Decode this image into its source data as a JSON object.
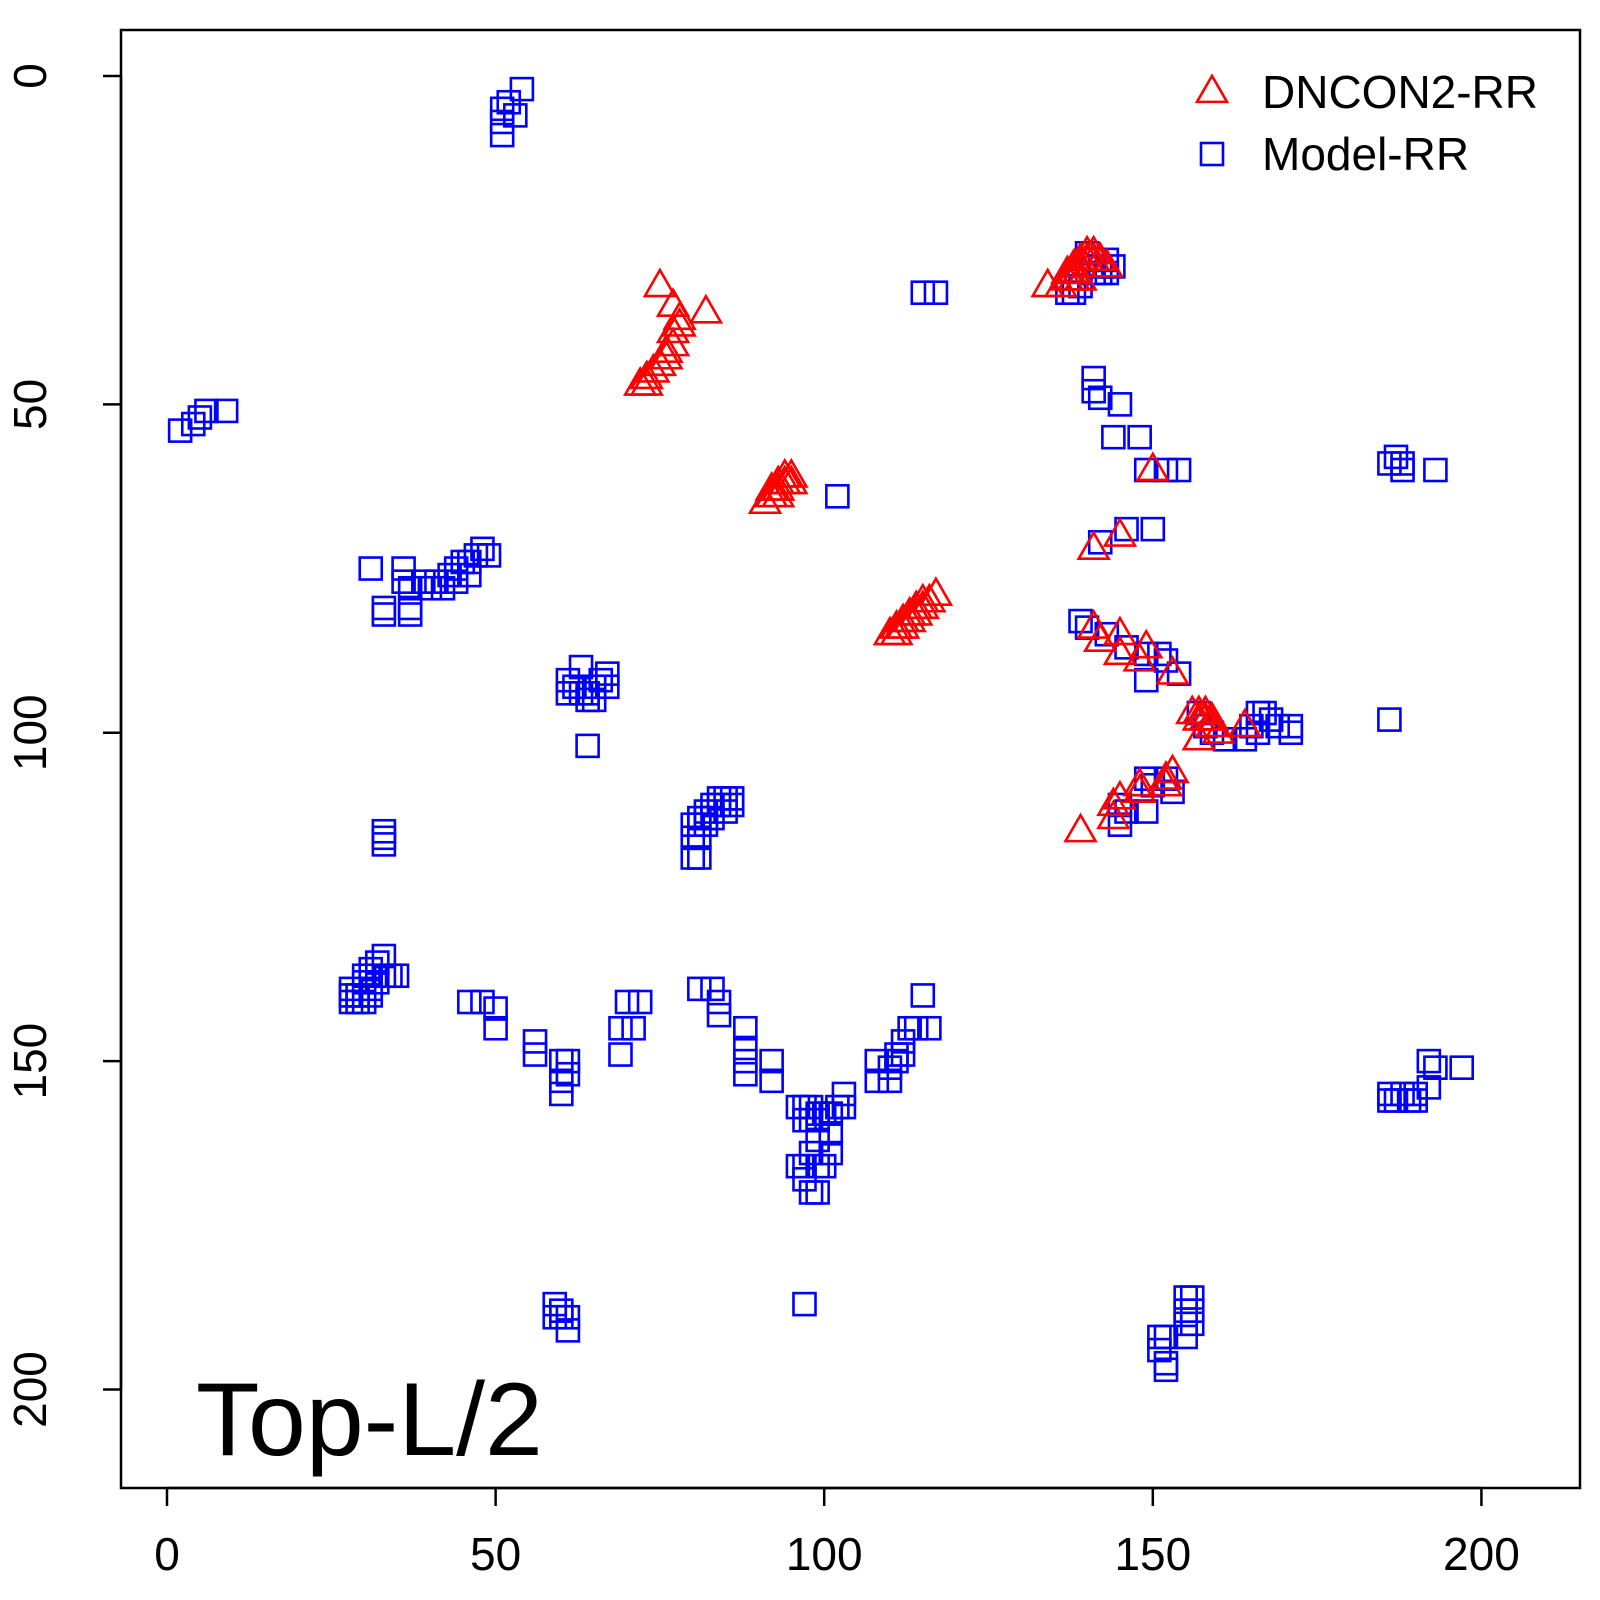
{
  "chart_data": {
    "type": "scatter",
    "title": "",
    "xlabel": "",
    "ylabel": "",
    "annotation": "Top-L/2",
    "xlim": [
      -7,
      215
    ],
    "ylim": [
      215,
      -7
    ],
    "y_reversed": true,
    "x_ticks": [
      0,
      50,
      100,
      150,
      200
    ],
    "y_ticks": [
      0,
      50,
      100,
      150,
      200
    ],
    "legend": {
      "position": "top-right"
    },
    "grid": false,
    "series": [
      {
        "name": "DNCON2-RR",
        "marker": "triangle",
        "color": "#ff0000",
        "points": [
          [
            75,
            32
          ],
          [
            77,
            35
          ],
          [
            78,
            37
          ],
          [
            78,
            38
          ],
          [
            77,
            39
          ],
          [
            77,
            41
          ],
          [
            76,
            42
          ],
          [
            76,
            43
          ],
          [
            75,
            44
          ],
          [
            74,
            45
          ],
          [
            73,
            46
          ],
          [
            73,
            47
          ],
          [
            72,
            47
          ],
          [
            82,
            36
          ],
          [
            91,
            65
          ],
          [
            92,
            64
          ],
          [
            92,
            63
          ],
          [
            93,
            63
          ],
          [
            93,
            62
          ],
          [
            94,
            62
          ],
          [
            94,
            61
          ],
          [
            95,
            61
          ],
          [
            95,
            62
          ],
          [
            93,
            64
          ],
          [
            110,
            85
          ],
          [
            111,
            85
          ],
          [
            112,
            84
          ],
          [
            112,
            83
          ],
          [
            113,
            83
          ],
          [
            113,
            82
          ],
          [
            114,
            82
          ],
          [
            114,
            81
          ],
          [
            115,
            81
          ],
          [
            115,
            80
          ],
          [
            116,
            80
          ],
          [
            117,
            79
          ],
          [
            111,
            84
          ],
          [
            134,
            32
          ],
          [
            136,
            32
          ],
          [
            137,
            31
          ],
          [
            137,
            30
          ],
          [
            138,
            30
          ],
          [
            138,
            29
          ],
          [
            139,
            29
          ],
          [
            139,
            28
          ],
          [
            140,
            28
          ],
          [
            140,
            27
          ],
          [
            141,
            27
          ],
          [
            141,
            28
          ],
          [
            142,
            28
          ],
          [
            143,
            29
          ],
          [
            138,
            31
          ],
          [
            139,
            31
          ],
          [
            141,
            72
          ],
          [
            145,
            70
          ],
          [
            150,
            60
          ],
          [
            141,
            84
          ],
          [
            142,
            86
          ],
          [
            145,
            85
          ],
          [
            145,
            88
          ],
          [
            149,
            87
          ],
          [
            148,
            89
          ],
          [
            153,
            91
          ],
          [
            156,
            97
          ],
          [
            157,
            97
          ],
          [
            157,
            98
          ],
          [
            158,
            98
          ],
          [
            158,
            97
          ],
          [
            159,
            98
          ],
          [
            159,
            99
          ],
          [
            160,
            100
          ],
          [
            164,
            99
          ],
          [
            157,
            101
          ],
          [
            139,
            115
          ],
          [
            144,
            113
          ],
          [
            144,
            111
          ],
          [
            145,
            110
          ],
          [
            148,
            109
          ],
          [
            148,
            108
          ],
          [
            152,
            108
          ],
          [
            152,
            107
          ],
          [
            153,
            106
          ]
        ]
      },
      {
        "name": "Model-RR",
        "marker": "square",
        "color": "#0000ff",
        "points": [
          [
            54,
            2
          ],
          [
            52,
            4
          ],
          [
            51,
            5
          ],
          [
            53,
            6
          ],
          [
            51,
            7
          ],
          [
            51,
            9
          ],
          [
            9,
            51
          ],
          [
            6,
            51
          ],
          [
            5,
            52
          ],
          [
            4,
            53
          ],
          [
            2,
            54
          ],
          [
            31,
            75
          ],
          [
            36,
            75
          ],
          [
            36,
            77
          ],
          [
            37,
            78
          ],
          [
            39,
            77
          ],
          [
            40,
            78
          ],
          [
            41,
            77
          ],
          [
            42,
            78
          ],
          [
            43,
            76
          ],
          [
            44,
            75
          ],
          [
            45,
            74
          ],
          [
            46,
            74
          ],
          [
            47,
            73
          ],
          [
            48,
            72
          ],
          [
            49,
            73
          ],
          [
            44,
            77
          ],
          [
            46,
            76
          ],
          [
            33,
            81
          ],
          [
            37,
            81
          ],
          [
            37,
            82
          ],
          [
            33,
            82
          ],
          [
            63,
            90
          ],
          [
            61,
            92
          ],
          [
            62,
            93
          ],
          [
            63,
            94
          ],
          [
            64,
            94
          ],
          [
            65,
            93
          ],
          [
            66,
            92
          ],
          [
            67,
            91
          ],
          [
            67,
            93
          ],
          [
            61,
            94
          ],
          [
            64,
            95
          ],
          [
            65,
            95
          ],
          [
            64,
            102
          ],
          [
            33,
            115
          ],
          [
            33,
            116
          ],
          [
            33,
            117
          ],
          [
            80,
            114
          ],
          [
            80,
            116
          ],
          [
            81,
            114
          ],
          [
            81,
            113
          ],
          [
            82,
            113
          ],
          [
            82,
            112
          ],
          [
            83,
            111
          ],
          [
            84,
            111
          ],
          [
            84,
            110
          ],
          [
            85,
            110
          ],
          [
            86,
            110
          ],
          [
            86,
            111
          ],
          [
            85,
            112
          ],
          [
            83,
            113
          ],
          [
            82,
            114
          ],
          [
            81,
            116
          ],
          [
            80,
            119
          ],
          [
            81,
            119
          ],
          [
            33,
            134
          ],
          [
            32,
            135
          ],
          [
            31,
            136
          ],
          [
            30,
            137
          ],
          [
            30,
            138
          ],
          [
            31,
            139
          ],
          [
            32,
            138
          ],
          [
            33,
            137
          ],
          [
            34,
            137
          ],
          [
            35,
            137
          ],
          [
            29,
            140
          ],
          [
            28,
            140
          ],
          [
            28,
            141
          ],
          [
            29,
            141
          ],
          [
            30,
            141
          ],
          [
            28,
            139
          ],
          [
            31,
            140
          ],
          [
            46,
            141
          ],
          [
            48,
            141
          ],
          [
            50,
            142
          ],
          [
            50,
            145
          ],
          [
            56,
            147
          ],
          [
            56,
            149
          ],
          [
            60,
            150
          ],
          [
            61,
            150
          ],
          [
            61,
            152
          ],
          [
            60,
            153
          ],
          [
            60,
            155
          ],
          [
            72,
            141
          ],
          [
            70,
            141
          ],
          [
            71,
            145
          ],
          [
            69,
            145
          ],
          [
            69,
            149
          ],
          [
            81,
            139
          ],
          [
            83,
            139
          ],
          [
            84,
            141
          ],
          [
            84,
            143
          ],
          [
            88,
            145
          ],
          [
            88,
            148
          ],
          [
            88,
            150
          ],
          [
            88,
            152
          ],
          [
            92,
            150
          ],
          [
            92,
            153
          ],
          [
            96,
            157
          ],
          [
            97,
            157
          ],
          [
            98,
            157
          ],
          [
            99,
            158
          ],
          [
            100,
            158
          ],
          [
            101,
            158
          ],
          [
            97,
            159
          ],
          [
            98,
            159
          ],
          [
            99,
            159
          ],
          [
            102,
            157
          ],
          [
            103,
            155
          ],
          [
            103,
            157
          ],
          [
            101,
            161
          ],
          [
            99,
            162
          ],
          [
            98,
            164
          ],
          [
            97,
            166
          ],
          [
            99,
            166
          ],
          [
            100,
            166
          ],
          [
            96,
            166
          ],
          [
            97,
            168
          ],
          [
            98,
            170
          ],
          [
            99,
            170
          ],
          [
            101,
            164
          ],
          [
            108,
            150
          ],
          [
            108,
            153
          ],
          [
            110,
            151
          ],
          [
            110,
            153
          ],
          [
            111,
            150
          ],
          [
            111,
            149
          ],
          [
            112,
            147
          ],
          [
            112,
            149
          ],
          [
            113,
            145
          ],
          [
            114,
            145
          ],
          [
            116,
            145
          ],
          [
            115,
            140
          ],
          [
            102,
            64
          ],
          [
            97,
            187
          ],
          [
            59,
            187
          ],
          [
            60,
            188
          ],
          [
            59,
            189
          ],
          [
            60,
            189
          ],
          [
            61,
            189
          ],
          [
            61,
            191
          ],
          [
            156,
            186
          ],
          [
            155,
            186
          ],
          [
            156,
            188
          ],
          [
            155,
            188
          ],
          [
            155,
            190
          ],
          [
            156,
            190
          ],
          [
            155,
            192
          ],
          [
            152,
            192
          ],
          [
            151,
            192
          ],
          [
            151,
            194
          ],
          [
            152,
            196
          ],
          [
            152,
            197
          ],
          [
            115,
            33
          ],
          [
            117,
            33
          ],
          [
            141,
            30
          ],
          [
            142,
            30
          ],
          [
            143,
            30
          ],
          [
            142,
            29
          ],
          [
            141,
            28
          ],
          [
            140,
            27
          ],
          [
            143,
            28
          ],
          [
            144,
            29
          ],
          [
            139,
            32
          ],
          [
            138,
            33
          ],
          [
            137,
            33
          ],
          [
            141,
            46
          ],
          [
            141,
            48
          ],
          [
            142,
            49
          ],
          [
            145,
            50
          ],
          [
            144,
            55
          ],
          [
            148,
            55
          ],
          [
            149,
            60
          ],
          [
            152,
            60
          ],
          [
            154,
            60
          ],
          [
            142,
            71
          ],
          [
            146,
            69
          ],
          [
            150,
            69
          ],
          [
            139,
            83
          ],
          [
            140,
            84
          ],
          [
            143,
            85
          ],
          [
            146,
            87
          ],
          [
            149,
            88
          ],
          [
            151,
            88
          ],
          [
            152,
            89
          ],
          [
            149,
            92
          ],
          [
            154,
            91
          ],
          [
            157,
            97
          ],
          [
            158,
            99
          ],
          [
            159,
            100
          ],
          [
            161,
            101
          ],
          [
            164,
            101
          ],
          [
            165,
            99
          ],
          [
            166,
            97
          ],
          [
            167,
            97
          ],
          [
            168,
            98
          ],
          [
            169,
            99
          ],
          [
            171,
            99
          ],
          [
            171,
            100
          ],
          [
            166,
            100
          ],
          [
            149,
            107
          ],
          [
            152,
            107
          ],
          [
            153,
            109
          ],
          [
            150,
            108
          ],
          [
            145,
            111
          ],
          [
            146,
            112
          ],
          [
            149,
            112
          ],
          [
            145,
            114
          ],
          [
            186,
            59
          ],
          [
            187,
            58
          ],
          [
            188,
            59
          ],
          [
            188,
            60
          ],
          [
            193,
            60
          ],
          [
            186,
            98
          ],
          [
            192,
            150
          ],
          [
            193,
            151
          ],
          [
            197,
            151
          ],
          [
            192,
            154
          ],
          [
            190,
            155
          ],
          [
            188,
            155
          ],
          [
            186,
            155
          ],
          [
            187,
            156
          ],
          [
            189,
            156
          ],
          [
            190,
            156
          ],
          [
            186,
            156
          ]
        ]
      }
    ]
  }
}
